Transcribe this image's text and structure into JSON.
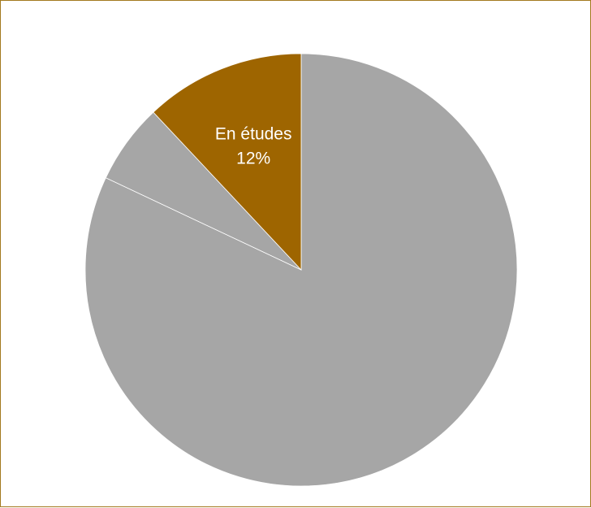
{
  "chart_data": {
    "type": "pie",
    "start_angle_deg": 0,
    "direction": "clockwise",
    "slices": [
      {
        "label": "",
        "value": 82,
        "color": "#a6a6a6"
      },
      {
        "label": "",
        "value": 6,
        "color": "#a6a6a6"
      },
      {
        "label": "En études",
        "value": 12,
        "display": "12%",
        "color": "#9e6500"
      }
    ],
    "title": "",
    "legend": "none",
    "border_color": "#a37a1f",
    "slice_separator_color": "#ffffff"
  }
}
